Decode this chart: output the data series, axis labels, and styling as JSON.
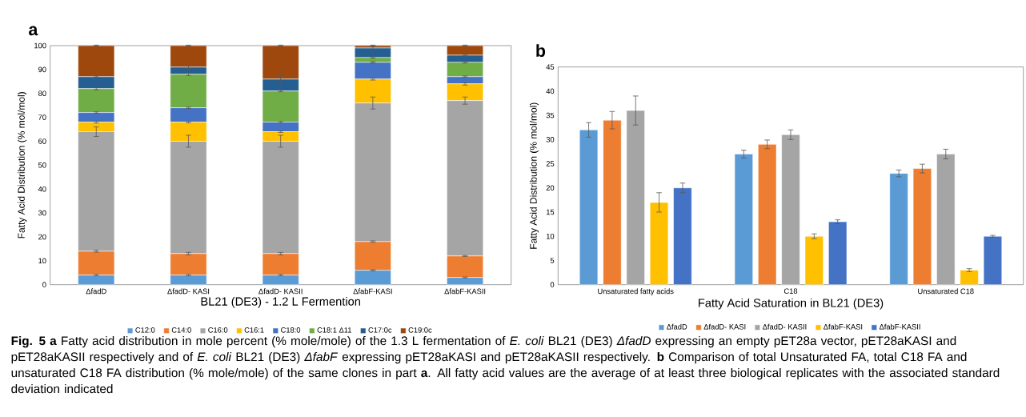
{
  "chart_data": [
    {
      "type": "bar",
      "title": "a",
      "xlabel": "BL21 (DE3) - 1.2 L Fermention",
      "ylabel": "Fatty Acid Distribution (% mol/mol)",
      "stacked": true,
      "categories": [
        "ΔfadD",
        "ΔfadD- KASI",
        "ΔfadD- KASII",
        "ΔfabF-KASI",
        "ΔfabF-KASII"
      ],
      "ylim": [
        0,
        100
      ],
      "yticks": [
        0,
        10,
        20,
        30,
        40,
        50,
        60,
        70,
        80,
        90,
        100
      ],
      "legend": "bottom",
      "series": [
        {
          "name": "C12:0",
          "color": "#5b9bd5",
          "values": [
            4,
            4,
            4,
            6,
            3
          ],
          "errors": [
            0.3,
            0.3,
            0.3,
            0.2,
            0.2
          ]
        },
        {
          "name": "C14:0",
          "color": "#ed7d31",
          "values": [
            10,
            9,
            9,
            12,
            9
          ],
          "errors": [
            0.4,
            0.5,
            0.5,
            0.3,
            0.2
          ]
        },
        {
          "name": "C16:0",
          "color": "#a5a5a5",
          "values": [
            50,
            47,
            47,
            58,
            65
          ],
          "errors": [
            2,
            2.5,
            2.5,
            2.5,
            1.5
          ]
        },
        {
          "name": "C16:1",
          "color": "#ffc000",
          "values": [
            4,
            8,
            4,
            10,
            7
          ],
          "errors": [
            0.4,
            0.3,
            0.3,
            0.4,
            0.5
          ]
        },
        {
          "name": "C18:0",
          "color": "#4472c4",
          "values": [
            4,
            6,
            4,
            7,
            3
          ],
          "errors": [
            0.3,
            0.3,
            0.3,
            0.3,
            0.3
          ]
        },
        {
          "name": "C18:1 Δ11",
          "color": "#70ad47",
          "values": [
            10,
            14,
            13,
            2,
            6
          ],
          "errors": [
            0.5,
            0.5,
            0.3,
            0.3,
            0.3
          ]
        },
        {
          "name": "C17:0c",
          "color": "#255e91",
          "values": [
            5,
            3,
            5,
            4,
            3
          ],
          "errors": [
            0.3,
            0.6,
            2,
            0.7,
            0.3
          ]
        },
        {
          "name": "C19:0c",
          "color": "#9e480e",
          "values": [
            13,
            9,
            14,
            1,
            4
          ],
          "errors": [
            0.2,
            0.2,
            0.2,
            0.2,
            0.2
          ]
        }
      ]
    },
    {
      "type": "bar",
      "title": "b",
      "xlabel": "Fatty Acid Saturation in BL21 (DE3)",
      "ylabel": "Fatty Acid Distribution (% mol/mol)",
      "categories": [
        "Unsaturated fatty acids",
        "C18",
        "Unsaturated C18"
      ],
      "ylim": [
        0,
        45
      ],
      "yticks": [
        0,
        5,
        10,
        15,
        20,
        25,
        30,
        35,
        40,
        45
      ],
      "legend": "bottom",
      "series": [
        {
          "name": "ΔfadD",
          "color": "#5b9bd5",
          "values": [
            32,
            27,
            23
          ],
          "errors": [
            1.5,
            0.8,
            0.7
          ]
        },
        {
          "name": "ΔfadD- KASI",
          "color": "#ed7d31",
          "values": [
            34,
            29,
            24
          ],
          "errors": [
            1.8,
            0.9,
            0.9
          ]
        },
        {
          "name": "ΔfadD- KASII",
          "color": "#a5a5a5",
          "values": [
            36,
            31,
            27
          ],
          "errors": [
            3,
            1,
            1
          ]
        },
        {
          "name": "ΔfabF-KASI",
          "color": "#ffc000",
          "values": [
            17,
            10,
            3
          ],
          "errors": [
            2,
            0.5,
            0.3
          ]
        },
        {
          "name": "ΔfabF-KASII",
          "color": "#4472c4",
          "values": [
            20,
            13,
            10
          ],
          "errors": [
            1,
            0.4,
            0.2
          ]
        }
      ],
      "annotations": [
        "**Fig. 5** **a** Fatty acid distribution in mole percent (% mole/mole) of the 1.3 L fermentation of *E. coli* BL21 (DE3) *ΔfadD* expressing an empty pET28a vector, pET28aKASI and pET28aKASII respectively and of *E. coli* BL21 (DE3) *ΔfabF* expressing pET28aKASI and pET28aKASII respectively. **b** Comparison of total Unsaturated FA, total C18 FA and unsaturated C18 FA distribution (% mole/mole) of the same clones in part **a**. All fatty acid values are the average of at least three biological replicates with the associated standard deviation indicated"
      ]
    }
  ]
}
